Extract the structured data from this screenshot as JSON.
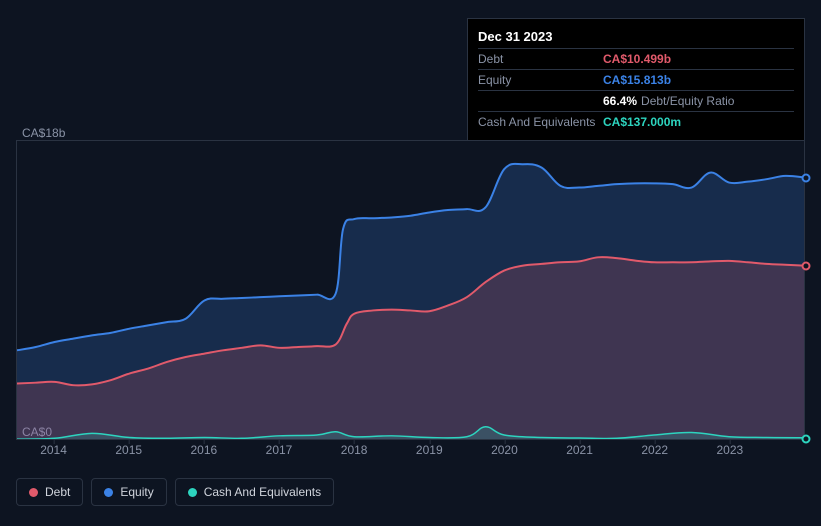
{
  "tooltip": {
    "date": "Dec 31 2023",
    "rows": [
      {
        "label": "Debt",
        "value": "CA$10.499b",
        "color": "#e15a6b"
      },
      {
        "label": "Equity",
        "value": "CA$15.813b",
        "color": "#3b82e6"
      },
      {
        "label": "",
        "value": "66.4%",
        "suffix": "Debt/Equity Ratio",
        "color": "#ffffff"
      },
      {
        "label": "Cash And Equivalents",
        "value": "CA$137.000m",
        "color": "#2dd4bf"
      }
    ]
  },
  "chart": {
    "type": "area",
    "xlim": [
      2013.5,
      2024.0
    ],
    "ylim": [
      0,
      18
    ],
    "y_top_label": "CA$18b",
    "y_bottom_label": "CA$0",
    "x_ticks": [
      2014,
      2015,
      2016,
      2017,
      2018,
      2019,
      2020,
      2021,
      2022,
      2023
    ],
    "background_color": "#0d1421",
    "grid_color": "#2a3342",
    "end_markers": [
      {
        "series": "equity",
        "y": 15.81,
        "color": "#3b82e6"
      },
      {
        "series": "debt",
        "y": 10.5,
        "color": "#e15a6b"
      },
      {
        "series": "cash",
        "y": 0.137,
        "color": "#2dd4bf"
      }
    ],
    "series": {
      "equity": {
        "color": "#3b82e6",
        "fill": "rgba(59,130,230,0.22)",
        "line_width": 2,
        "data": [
          [
            2013.5,
            5.4
          ],
          [
            2013.75,
            5.6
          ],
          [
            2014.0,
            5.9
          ],
          [
            2014.25,
            6.1
          ],
          [
            2014.5,
            6.3
          ],
          [
            2014.75,
            6.45
          ],
          [
            2015.0,
            6.7
          ],
          [
            2015.25,
            6.9
          ],
          [
            2015.5,
            7.1
          ],
          [
            2015.75,
            7.3
          ],
          [
            2016.0,
            8.4
          ],
          [
            2016.25,
            8.5
          ],
          [
            2016.5,
            8.55
          ],
          [
            2016.75,
            8.6
          ],
          [
            2017.0,
            8.65
          ],
          [
            2017.25,
            8.7
          ],
          [
            2017.5,
            8.75
          ],
          [
            2017.75,
            8.8
          ],
          [
            2017.85,
            12.7
          ],
          [
            2018.0,
            13.3
          ],
          [
            2018.25,
            13.35
          ],
          [
            2018.5,
            13.4
          ],
          [
            2018.75,
            13.5
          ],
          [
            2019.0,
            13.7
          ],
          [
            2019.25,
            13.85
          ],
          [
            2019.5,
            13.9
          ],
          [
            2019.75,
            14.0
          ],
          [
            2020.0,
            16.3
          ],
          [
            2020.25,
            16.6
          ],
          [
            2020.5,
            16.4
          ],
          [
            2020.75,
            15.3
          ],
          [
            2021.0,
            15.2
          ],
          [
            2021.25,
            15.3
          ],
          [
            2021.5,
            15.4
          ],
          [
            2021.75,
            15.45
          ],
          [
            2022.0,
            15.45
          ],
          [
            2022.25,
            15.4
          ],
          [
            2022.5,
            15.2
          ],
          [
            2022.75,
            16.1
          ],
          [
            2023.0,
            15.5
          ],
          [
            2023.25,
            15.55
          ],
          [
            2023.5,
            15.7
          ],
          [
            2023.75,
            15.9
          ],
          [
            2024.0,
            15.81
          ]
        ]
      },
      "debt": {
        "color": "#e15a6b",
        "fill": "rgba(225,90,107,0.20)",
        "line_width": 2,
        "data": [
          [
            2013.5,
            3.4
          ],
          [
            2013.75,
            3.45
          ],
          [
            2014.0,
            3.5
          ],
          [
            2014.25,
            3.3
          ],
          [
            2014.5,
            3.35
          ],
          [
            2014.75,
            3.6
          ],
          [
            2015.0,
            4.0
          ],
          [
            2015.25,
            4.3
          ],
          [
            2015.5,
            4.7
          ],
          [
            2015.75,
            5.0
          ],
          [
            2016.0,
            5.2
          ],
          [
            2016.25,
            5.4
          ],
          [
            2016.5,
            5.55
          ],
          [
            2016.75,
            5.7
          ],
          [
            2017.0,
            5.55
          ],
          [
            2017.25,
            5.6
          ],
          [
            2017.5,
            5.65
          ],
          [
            2017.75,
            5.75
          ],
          [
            2017.9,
            7.0
          ],
          [
            2018.0,
            7.6
          ],
          [
            2018.25,
            7.8
          ],
          [
            2018.5,
            7.85
          ],
          [
            2018.75,
            7.8
          ],
          [
            2019.0,
            7.75
          ],
          [
            2019.25,
            8.1
          ],
          [
            2019.5,
            8.6
          ],
          [
            2019.75,
            9.5
          ],
          [
            2020.0,
            10.2
          ],
          [
            2020.25,
            10.5
          ],
          [
            2020.5,
            10.6
          ],
          [
            2020.75,
            10.7
          ],
          [
            2021.0,
            10.75
          ],
          [
            2021.25,
            11.0
          ],
          [
            2021.5,
            10.95
          ],
          [
            2021.75,
            10.8
          ],
          [
            2022.0,
            10.7
          ],
          [
            2022.25,
            10.7
          ],
          [
            2022.5,
            10.7
          ],
          [
            2022.75,
            10.75
          ],
          [
            2023.0,
            10.78
          ],
          [
            2023.25,
            10.7
          ],
          [
            2023.5,
            10.6
          ],
          [
            2023.75,
            10.55
          ],
          [
            2024.0,
            10.5
          ]
        ]
      },
      "cash": {
        "color": "#2dd4bf",
        "fill": "rgba(45,212,191,0.18)",
        "line_width": 1.5,
        "data": [
          [
            2013.5,
            0.05
          ],
          [
            2014.0,
            0.1
          ],
          [
            2014.5,
            0.4
          ],
          [
            2015.0,
            0.15
          ],
          [
            2015.5,
            0.1
          ],
          [
            2016.0,
            0.15
          ],
          [
            2016.5,
            0.1
          ],
          [
            2017.0,
            0.25
          ],
          [
            2017.5,
            0.3
          ],
          [
            2017.75,
            0.5
          ],
          [
            2018.0,
            0.2
          ],
          [
            2018.5,
            0.25
          ],
          [
            2019.0,
            0.15
          ],
          [
            2019.5,
            0.2
          ],
          [
            2019.75,
            0.8
          ],
          [
            2020.0,
            0.3
          ],
          [
            2020.5,
            0.15
          ],
          [
            2021.0,
            0.12
          ],
          [
            2021.5,
            0.1
          ],
          [
            2022.0,
            0.3
          ],
          [
            2022.5,
            0.45
          ],
          [
            2023.0,
            0.2
          ],
          [
            2023.5,
            0.15
          ],
          [
            2024.0,
            0.137
          ]
        ]
      }
    }
  },
  "legend": [
    {
      "label": "Debt",
      "color": "#e15a6b"
    },
    {
      "label": "Equity",
      "color": "#3b82e6"
    },
    {
      "label": "Cash And Equivalents",
      "color": "#2dd4bf"
    }
  ]
}
